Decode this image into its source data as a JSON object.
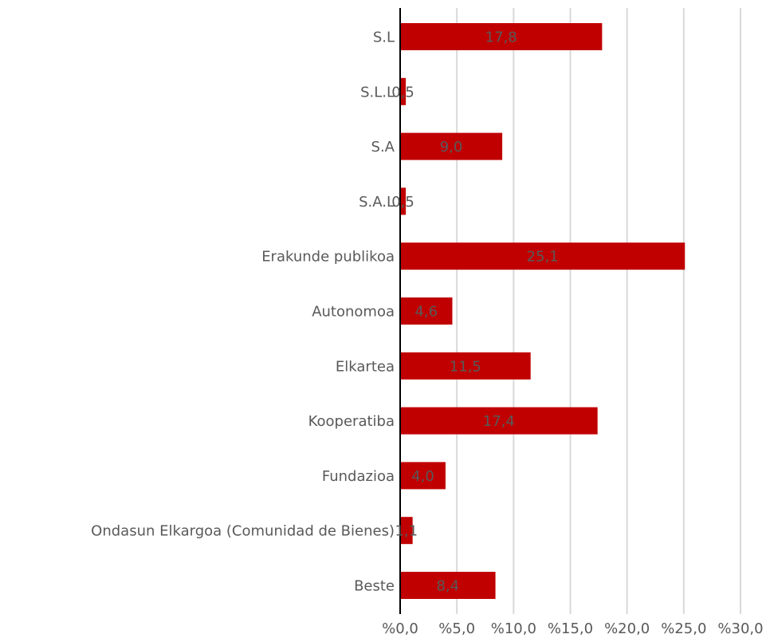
{
  "chart_data": {
    "type": "bar",
    "orientation": "horizontal",
    "categories": [
      "S.L",
      "S.L.L",
      "S.A",
      "S.A.L",
      "Erakunde publikoa",
      "Autonomoa",
      "Elkartea",
      "Kooperatiba",
      "Fundazioa",
      "Ondasun Elkargoa (Comunidad de Bienes)",
      "Beste"
    ],
    "values": [
      17.8,
      0.5,
      9.0,
      0.5,
      25.1,
      4.6,
      11.5,
      17.4,
      4.0,
      1.1,
      8.4
    ],
    "data_labels": [
      "17,8",
      "0,5",
      "9,0",
      "0,5",
      "25,1",
      "4,6",
      "11,5",
      "17,4",
      "4,0",
      "1,1",
      "8,4"
    ],
    "xlim": [
      0,
      30
    ],
    "x_ticks": [
      0,
      5,
      10,
      15,
      20,
      25,
      30
    ],
    "x_tick_labels": [
      "%0,0",
      "%5,0",
      "%10,0",
      "%15,0",
      "%20,0",
      "%25,0",
      "%30,0"
    ],
    "title": "",
    "xlabel": "",
    "ylabel": "",
    "grid": true,
    "legend": "none",
    "colors": {
      "bar": "#c00000",
      "text": "#595959",
      "grid": "#d9d9d9",
      "axis": "#000000"
    }
  }
}
